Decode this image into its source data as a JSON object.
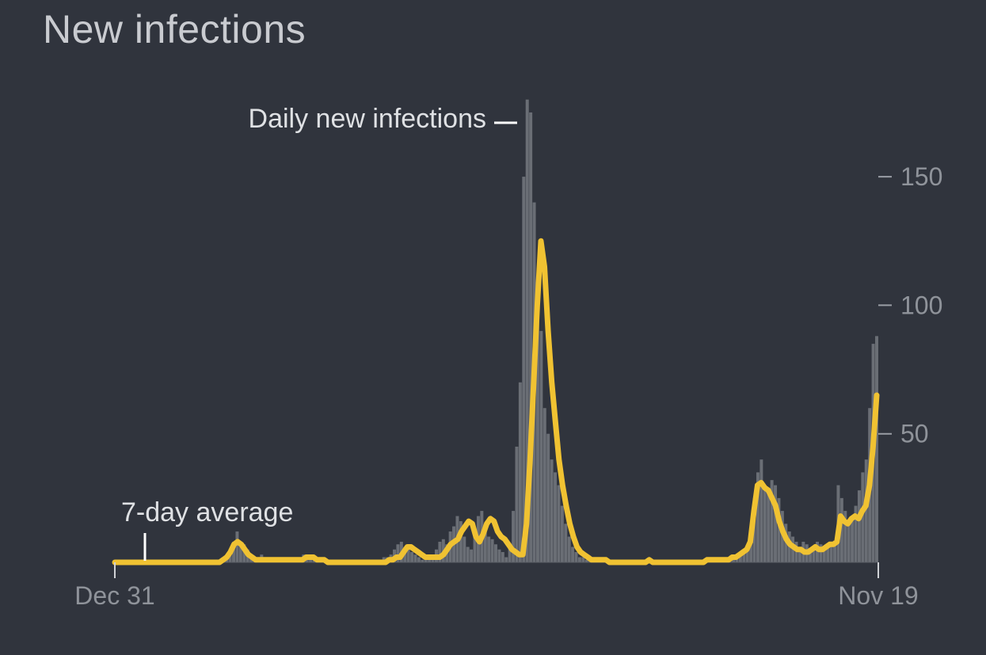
{
  "title": "New infections",
  "colors": {
    "background": "#30343d",
    "daily_bars": "#6a6e75",
    "average_line": "#f0c232",
    "tick_text": "#8f939a",
    "annotation_text": "#dfe1e4"
  },
  "chart_data": {
    "type": "bar",
    "title": "New infections",
    "xlabel": "",
    "ylabel": "",
    "x_tick_labels": [
      "Dec 31",
      "Nov 19"
    ],
    "y_ticks": [
      50,
      100,
      150
    ],
    "ylim": [
      0,
      180
    ],
    "grid": false,
    "legend": "none",
    "annotations": [
      "Daily new infections",
      "7-day average"
    ],
    "series": [
      {
        "type": "bar",
        "values": [
          0,
          0,
          0,
          0,
          0,
          0,
          0,
          0,
          0,
          0,
          0,
          0,
          0,
          0,
          0,
          0,
          0,
          0,
          0,
          0,
          0,
          0,
          0,
          0,
          0,
          0,
          0,
          0,
          0,
          0,
          1,
          2,
          3,
          5,
          8,
          12,
          8,
          7,
          5,
          3,
          2,
          1,
          3,
          1,
          1,
          2,
          1,
          0,
          1,
          1,
          0,
          0,
          1,
          2,
          3,
          2,
          1,
          1,
          1,
          0,
          0,
          0,
          0,
          0,
          0,
          0,
          0,
          1,
          0,
          0,
          1,
          0,
          0,
          0,
          1,
          1,
          1,
          2,
          2,
          3,
          5,
          7,
          8,
          6,
          5,
          4,
          3,
          2,
          1,
          3,
          2,
          1,
          5,
          8,
          9,
          7,
          12,
          14,
          18,
          16,
          10,
          6,
          5,
          12,
          18,
          20,
          15,
          10,
          9,
          7,
          5,
          4,
          2,
          6,
          20,
          45,
          70,
          150,
          180,
          175,
          140,
          110,
          90,
          60,
          50,
          40,
          35,
          30,
          22,
          15,
          10,
          6,
          4,
          2,
          2,
          1,
          1,
          0,
          1,
          0,
          1,
          0,
          0,
          0,
          0,
          0,
          0,
          0,
          0,
          1,
          0,
          0,
          0,
          0,
          0,
          1,
          0,
          0,
          0,
          0,
          0,
          0,
          0,
          0,
          0,
          0,
          0,
          0,
          0,
          0,
          0,
          0,
          0,
          1,
          1,
          2,
          2,
          1,
          2,
          3,
          4,
          6,
          8,
          25,
          35,
          40,
          30,
          28,
          32,
          30,
          25,
          20,
          15,
          12,
          10,
          8,
          6,
          8,
          7,
          5,
          6,
          8,
          7,
          5,
          6,
          7,
          8,
          30,
          25,
          20,
          15,
          18,
          22,
          28,
          35,
          40,
          60,
          85,
          88
        ]
      },
      {
        "type": "line",
        "values": [
          0,
          0,
          0,
          0,
          0,
          0,
          0,
          0,
          0,
          0,
          0,
          0,
          0,
          0,
          0,
          0,
          0,
          0,
          0,
          0,
          0,
          0,
          0,
          0,
          0,
          0,
          0,
          0,
          0,
          0,
          1,
          2,
          4,
          7,
          8,
          7,
          5,
          3,
          2,
          1,
          1,
          1,
          1,
          1,
          1,
          1,
          1,
          1,
          1,
          1,
          1,
          1,
          1,
          2,
          2,
          2,
          1,
          1,
          1,
          0,
          0,
          0,
          0,
          0,
          0,
          0,
          0,
          0,
          0,
          0,
          0,
          0,
          0,
          0,
          0,
          0,
          1,
          1,
          2,
          2,
          4,
          6,
          6,
          5,
          4,
          3,
          2,
          2,
          2,
          2,
          2,
          3,
          5,
          7,
          8,
          9,
          12,
          14,
          16,
          15,
          10,
          8,
          11,
          15,
          17,
          16,
          12,
          10,
          9,
          7,
          5,
          4,
          3,
          3,
          15,
          40,
          70,
          100,
          125,
          115,
          90,
          70,
          55,
          40,
          30,
          22,
          15,
          10,
          6,
          4,
          3,
          2,
          1,
          1,
          1,
          1,
          1,
          0,
          0,
          0,
          0,
          0,
          0,
          0,
          0,
          0,
          0,
          0,
          1,
          0,
          0,
          0,
          0,
          0,
          0,
          0,
          0,
          0,
          0,
          0,
          0,
          0,
          0,
          0,
          1,
          1,
          1,
          1,
          1,
          1,
          1,
          2,
          2,
          3,
          4,
          5,
          8,
          20,
          30,
          31,
          29,
          28,
          25,
          22,
          16,
          12,
          9,
          7,
          6,
          5,
          5,
          4,
          4,
          5,
          6,
          5,
          5,
          6,
          7,
          7,
          8,
          18,
          16,
          15,
          17,
          18,
          17,
          20,
          22,
          30,
          45,
          65
        ]
      }
    ]
  }
}
